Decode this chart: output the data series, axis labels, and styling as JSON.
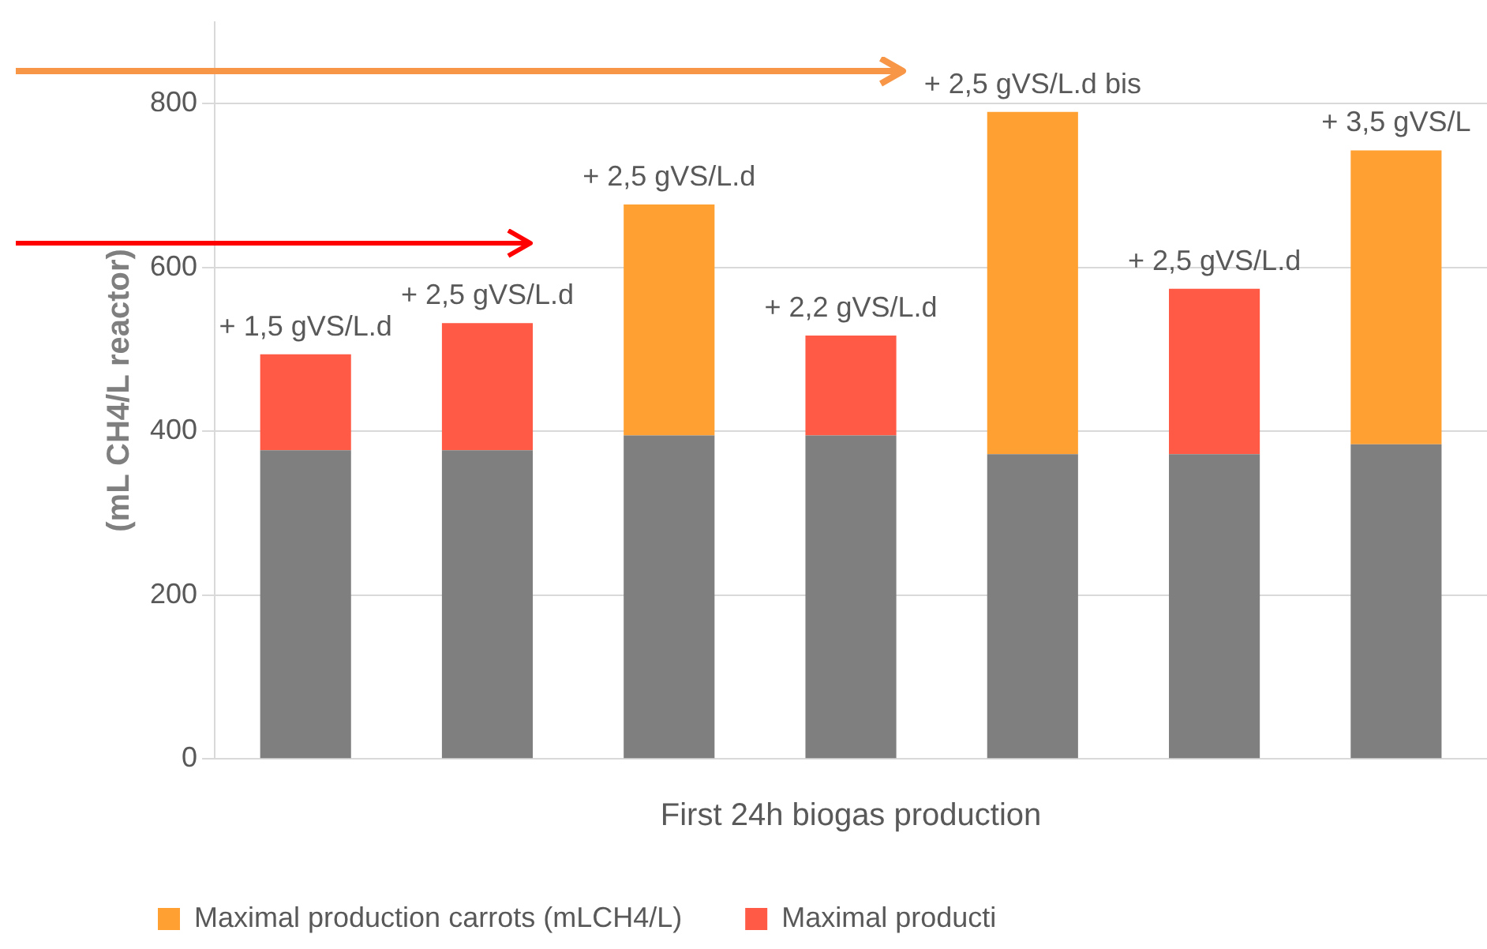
{
  "chart_data": {
    "type": "bar",
    "stacked": true,
    "xlabel": "First 24h biogas production",
    "ylabel": "(mL CH4/L reactor)",
    "categories": [
      null,
      null,
      null,
      null,
      null,
      null,
      null
    ],
    "ylim": [
      0,
      900
    ],
    "yticks": [
      0,
      200,
      400,
      600,
      800
    ],
    "grid": "y",
    "legend": "bottom",
    "series": [
      {
        "color": "#7f7f7f",
        "values": [
          377,
          377,
          395,
          395,
          372,
          372,
          384
        ]
      },
      {
        "name": "Maximal production carrots (mLCH4/L)",
        "color": "#ffa033",
        "values": [
          0,
          0,
          282,
          0,
          418,
          0,
          359
        ]
      },
      {
        "name": "Maximal producti",
        "color": "#ff5a45",
        "values": [
          117,
          155,
          0,
          122,
          0,
          202,
          0
        ]
      }
    ],
    "annotations": [
      "+ 1,5 gVS/L.d",
      "+ 2,5 gVS/L.d",
      "+ 2,5 gVS/L.d",
      "+ 2,2 gVS/L.d",
      "+ 2,5 gVS/L.d bis",
      "+ 2,5 gVS/L.d",
      "+ 3,5 gVS/L"
    ]
  }
}
